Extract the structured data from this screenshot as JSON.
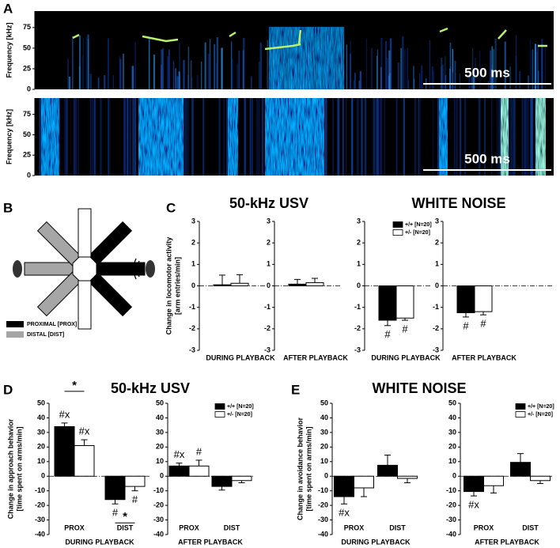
{
  "panel_labels": [
    "A",
    "B",
    "C",
    "D",
    "E"
  ],
  "maze": {
    "legend": [
      "PROXIMAL [PROX]",
      "DISTAL [DIST]"
    ]
  },
  "chart_data": [
    {
      "type": "spectrogram",
      "ylabel": "Frequency [kHz]",
      "ylim": [
        0,
        95
      ],
      "yticks": [
        0,
        25,
        50,
        75
      ],
      "scale_bar": "500 ms"
    },
    {
      "type": "spectrogram",
      "ylabel": "Frequency [kHz]",
      "ylim": [
        0,
        95
      ],
      "yticks": [
        0,
        25,
        50,
        75
      ],
      "scale_bar": "500 ms"
    },
    {
      "type": "bar",
      "title": "50-kHz USV",
      "ylabel": [
        "Change in locomotor activity",
        "[arm entries/min]"
      ],
      "xlabel": "DURING PLAYBACK",
      "ylim": [
        -3,
        3
      ],
      "yticks": [
        -3,
        -2,
        -1,
        0,
        1,
        2,
        3
      ],
      "series": [
        {
          "color": "#000000",
          "values": [
            0.05
          ],
          "errors": [
            0.45
          ]
        },
        {
          "color": "#ffffff",
          "values": [
            0.12
          ],
          "errors": [
            0.4
          ]
        }
      ]
    },
    {
      "type": "bar",
      "xlabel": "AFTER PLAYBACK",
      "ylim": [
        -3,
        3
      ],
      "yticks": [
        -3,
        -2,
        -1,
        0,
        1,
        2,
        3
      ],
      "series": [
        {
          "color": "#000000",
          "values": [
            0.08
          ],
          "errors": [
            0.22
          ]
        },
        {
          "color": "#ffffff",
          "values": [
            0.15
          ],
          "errors": [
            0.2
          ]
        }
      ]
    },
    {
      "type": "bar",
      "title": "WHITE NOISE",
      "xlabel": "DURING PLAYBACK",
      "ylim": [
        -3,
        3
      ],
      "yticks": [
        -3,
        -2,
        -1,
        0,
        1,
        2,
        3
      ],
      "legend": "upper right",
      "series": [
        {
          "name": "+/+ [N=20]",
          "color": "#000000",
          "values": [
            -1.6
          ],
          "errors": [
            0.25
          ],
          "annotations": [
            "#"
          ]
        },
        {
          "name": "+/- [N=20]",
          "color": "#ffffff",
          "values": [
            -1.5
          ],
          "errors": [
            0.1
          ],
          "annotations": [
            "#"
          ]
        }
      ]
    },
    {
      "type": "bar",
      "xlabel": "AFTER PLAYBACK",
      "ylim": [
        -3,
        3
      ],
      "yticks": [
        -3,
        -2,
        -1,
        0,
        1,
        2,
        3
      ],
      "series": [
        {
          "color": "#000000",
          "values": [
            -1.25
          ],
          "errors": [
            0.2
          ],
          "annotations": [
            "#"
          ]
        },
        {
          "color": "#ffffff",
          "values": [
            -1.2
          ],
          "errors": [
            0.15
          ],
          "annotations": [
            "#"
          ]
        }
      ]
    },
    {
      "type": "bar",
      "title": "50-kHz USV",
      "ylabel": [
        "Change in approach behavior",
        "[time spent on arms/min]"
      ],
      "categories": [
        "PROX",
        "DIST"
      ],
      "xlabel": "DURING PLAYBACK",
      "ylim": [
        -40,
        50
      ],
      "yticks": [
        -40,
        -30,
        -20,
        -10,
        0,
        10,
        20,
        30,
        40,
        50
      ],
      "significance": [
        "*",
        "*"
      ],
      "series": [
        {
          "color": "#000000",
          "values": [
            34,
            -16
          ],
          "errors": [
            2.5,
            3
          ],
          "annotations": [
            "#x",
            "#"
          ]
        },
        {
          "color": "#ffffff",
          "values": [
            21,
            -7
          ],
          "errors": [
            4,
            3
          ],
          "annotations": [
            "#x",
            "#"
          ]
        }
      ]
    },
    {
      "type": "bar",
      "categories": [
        "PROX",
        "DIST"
      ],
      "xlabel": "AFTER PLAYBACK",
      "legend": "upper right",
      "ylim": [
        -40,
        50
      ],
      "yticks": [
        -40,
        -30,
        -20,
        -10,
        0,
        10,
        20,
        30,
        40,
        50
      ],
      "series": [
        {
          "name": "+/+ [N=20]",
          "color": "#000000",
          "values": [
            7,
            -7
          ],
          "errors": [
            2,
            2.5
          ],
          "annotations": [
            "#x",
            null
          ]
        },
        {
          "name": "+/- [N=20]",
          "color": "#ffffff",
          "values": [
            7,
            -3
          ],
          "errors": [
            4,
            1.5
          ],
          "annotations": [
            "#",
            null
          ]
        }
      ]
    },
    {
      "type": "bar",
      "title": "WHITE NOISE",
      "ylabel": [
        "Change in avoidance behavior",
        "[time spent on arms/min]"
      ],
      "categories": [
        "PROX",
        "DIST"
      ],
      "xlabel": "DURING PLAYBACK",
      "ylim": [
        -40,
        50
      ],
      "yticks": [
        -40,
        -30,
        -20,
        -10,
        0,
        10,
        20,
        30,
        40,
        50
      ],
      "series": [
        {
          "color": "#000000",
          "values": [
            -14,
            7.5
          ],
          "errors": [
            5,
            7
          ],
          "annotations": [
            "#x",
            null
          ]
        },
        {
          "color": "#ffffff",
          "values": [
            -8,
            -1.5
          ],
          "errors": [
            6,
            3
          ]
        }
      ]
    },
    {
      "type": "bar",
      "categories": [
        "PROX",
        "DIST"
      ],
      "xlabel": "AFTER PLAYBACK",
      "legend": "upper right",
      "ylim": [
        -40,
        50
      ],
      "yticks": [
        -40,
        -30,
        -20,
        -10,
        0,
        10,
        20,
        30,
        40,
        50
      ],
      "series": [
        {
          "name": "+/+ [N=20]",
          "color": "#000000",
          "values": [
            -10.5,
            9.5
          ],
          "errors": [
            3,
            6
          ],
          "annotations": [
            "#x",
            null
          ]
        },
        {
          "name": "+/- [N=20]",
          "color": "#ffffff",
          "values": [
            -6.5,
            -3
          ],
          "errors": [
            5,
            2
          ]
        }
      ]
    }
  ]
}
